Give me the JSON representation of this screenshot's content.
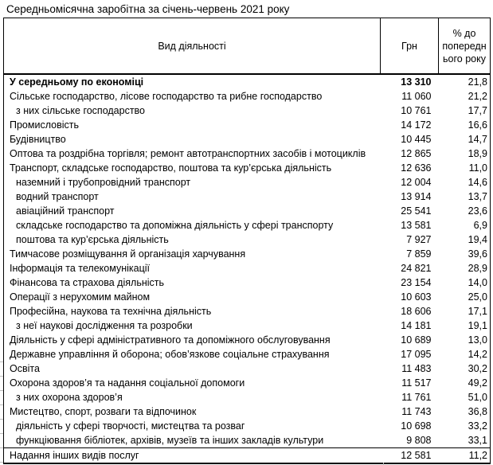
{
  "title": "Середньомісячна заробітна за січень-червень 2021 року",
  "table": {
    "columns": {
      "activity": "Вид діяльності",
      "uah": "Грн",
      "percent": "% до\nпопередн\nього року"
    },
    "rows": [
      {
        "label": "У середньому по економіці",
        "uah": "13 310",
        "percent": "21,8",
        "bold": true,
        "indent": false
      },
      {
        "label": "Сільське господарство, лісове господарство та рибне господарство",
        "uah": "11 060",
        "percent": "21,2",
        "bold": false,
        "indent": false
      },
      {
        "label": "з них сільське господарство",
        "uah": "10 761",
        "percent": "17,7",
        "bold": false,
        "indent": true
      },
      {
        "label": "Промисловість",
        "uah": "14 172",
        "percent": "16,6",
        "bold": false,
        "indent": false
      },
      {
        "label": "Будівництво",
        "uah": "10 445",
        "percent": "14,7",
        "bold": false,
        "indent": false
      },
      {
        "label": "Оптова та роздрібна торгівля; ремонт автотранспортних засобів і мотоциклів",
        "uah": "12 865",
        "percent": "18,9",
        "bold": false,
        "indent": false
      },
      {
        "label": "Транспорт, складське господарство, поштова та кур’єрська діяльність",
        "uah": "12 636",
        "percent": "11,0",
        "bold": false,
        "indent": false
      },
      {
        "label": "наземний і трубопровідний транспорт",
        "uah": "12 004",
        "percent": "14,6",
        "bold": false,
        "indent": true
      },
      {
        "label": "водний транспорт",
        "uah": "13 914",
        "percent": "13,7",
        "bold": false,
        "indent": true
      },
      {
        "label": "авіаційний транспорт",
        "uah": "25 541",
        "percent": "23,6",
        "bold": false,
        "indent": true
      },
      {
        "label": "складське господарство та допоміжна діяльність у сфері транспорту",
        "uah": "13 581",
        "percent": "6,9",
        "bold": false,
        "indent": true
      },
      {
        "label": "поштова та кур’єрська діяльність",
        "uah": "7 927",
        "percent": "19,4",
        "bold": false,
        "indent": true
      },
      {
        "label": "Тимчасове розміщування й організація харчування",
        "uah": "7 859",
        "percent": "39,6",
        "bold": false,
        "indent": false
      },
      {
        "label": "Інформація та телекомунікації",
        "uah": "24 821",
        "percent": "28,9",
        "bold": false,
        "indent": false
      },
      {
        "label": "Фінансова та страхова діяльність",
        "uah": "23 154",
        "percent": "14,0",
        "bold": false,
        "indent": false
      },
      {
        "label": "Операції з нерухомим майном",
        "uah": "10 603",
        "percent": "25,0",
        "bold": false,
        "indent": false
      },
      {
        "label": "Професійна, наукова та технічна діяльність",
        "uah": "18 606",
        "percent": "17,1",
        "bold": false,
        "indent": false
      },
      {
        "label": "з неї наукові дослідження та розробки",
        "uah": "14 181",
        "percent": "19,1",
        "bold": false,
        "indent": true
      },
      {
        "label": "Діяльність у сфері адміністративного та допоміжного обслуговування",
        "uah": "10 689",
        "percent": "13,0",
        "bold": false,
        "indent": false
      },
      {
        "label": "Державне управління й оборона; обов’язкове соціальне страхування",
        "uah": "17 095",
        "percent": "14,2",
        "bold": false,
        "indent": false
      },
      {
        "label": "Освіта",
        "uah": "11 483",
        "percent": "30,2",
        "bold": false,
        "indent": false
      },
      {
        "label": "Охорона здоров’я та надання соціальної допомоги",
        "uah": "11 517",
        "percent": "49,2",
        "bold": false,
        "indent": false
      },
      {
        "label": "з них охорона здоров’я",
        "uah": "11 761",
        "percent": "51,0",
        "bold": false,
        "indent": true
      },
      {
        "label": "Мистецтво, спорт, розваги та відпочинок",
        "uah": "11 743",
        "percent": "36,8",
        "bold": false,
        "indent": false
      },
      {
        "label": "діяльність у сфері творчості, мистецтва та розваг",
        "uah": "10 698",
        "percent": "33,2",
        "bold": false,
        "indent": true
      },
      {
        "label": "функціювання бібліотек, архівів, музеїв та інших закладів культури",
        "uah": "9 808",
        "percent": "33,1",
        "bold": false,
        "indent": true
      },
      {
        "label": "Надання інших видів послуг",
        "uah": "12 581",
        "percent": "11,2",
        "bold": false,
        "indent": false
      }
    ]
  }
}
